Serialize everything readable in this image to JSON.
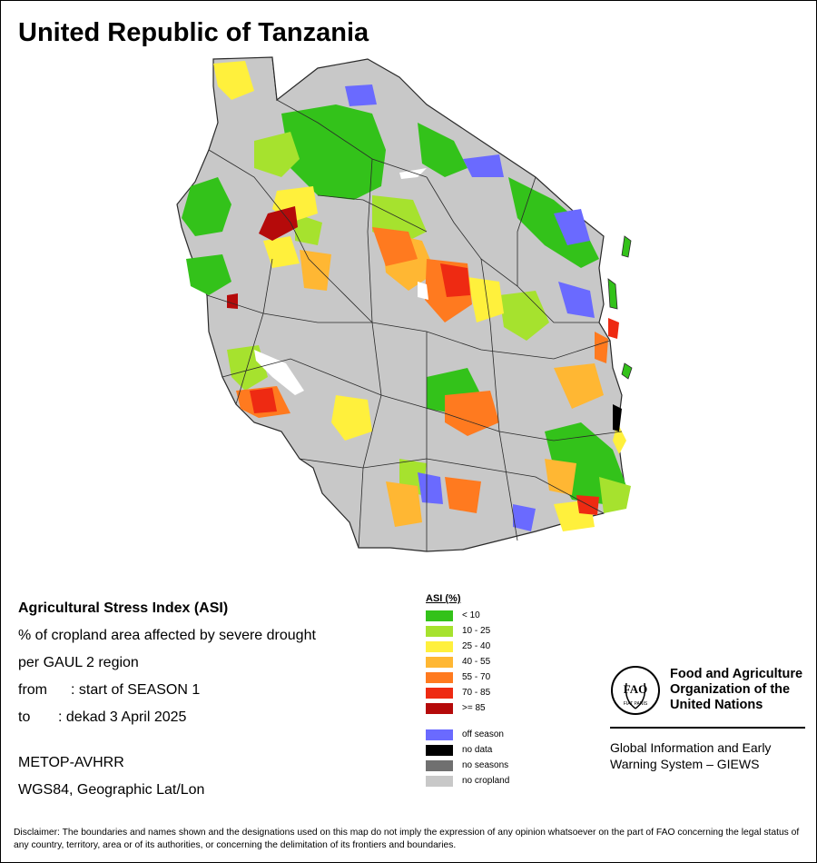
{
  "title": "United Republic of Tanzania",
  "info": {
    "heading": "Agricultural Stress Index (ASI)",
    "line1": "% of cropland area affected by severe drought",
    "line2": "per GAUL 2 region",
    "from_label": "from",
    "from_value": ": start of SEASON 1",
    "to_label": "to",
    "to_value": ": dekad 3 April 2025",
    "sensor": "METOP-AVHRR",
    "projection": "WGS84, Geographic Lat/Lon"
  },
  "legend": {
    "title": "ASI (%)",
    "classes": [
      {
        "label": "< 10",
        "color": "#33c21a"
      },
      {
        "label": "10 - 25",
        "color": "#a6e22e"
      },
      {
        "label": "25 - 40",
        "color": "#fff03c"
      },
      {
        "label": "40 - 55",
        "color": "#ffb733"
      },
      {
        "label": "55 - 70",
        "color": "#ff7a1f"
      },
      {
        "label": "70 - 85",
        "color": "#ee2a12"
      },
      {
        "label": ">= 85",
        "color": "#b50a0a"
      }
    ],
    "other": [
      {
        "label": "off season",
        "color": "#6a6aff"
      },
      {
        "label": "no data",
        "color": "#000000"
      },
      {
        "label": "no seasons",
        "color": "#707070"
      },
      {
        "label": "no cropland",
        "color": "#c8c8c8"
      }
    ]
  },
  "logo": {
    "org_name": "Food and Agriculture Organization of the United Nations",
    "logo_text": "FAO",
    "motto": "FIAT PANIS",
    "system": "Global Information and Early Warning System – GIEWS"
  },
  "disclaimer": "Disclaimer: The boundaries and names shown and the designations used on this map do not imply the expression of any opinion whatsoever on the part of FAO concerning the legal status of any country, territory, area or of its authorities, or concerning the delimitation of its frontiers and boundaries.",
  "colors": {
    "land": "#c8c8c8",
    "border": "#3a3a3a",
    "water": "#ffffff"
  }
}
